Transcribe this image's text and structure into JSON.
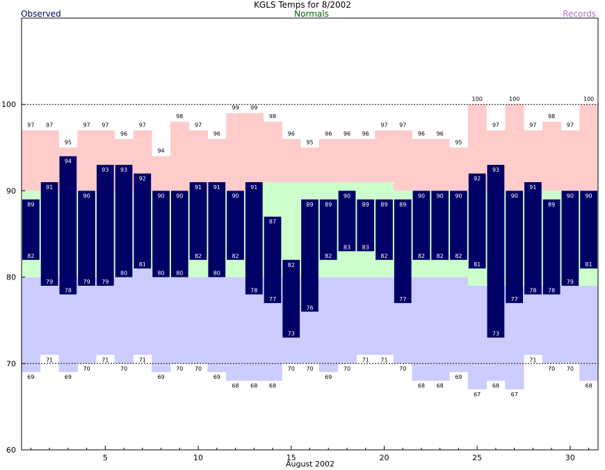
{
  "title": "KGLS Temps for 8/2002",
  "legend": {
    "observed": "Observed",
    "normals": "Normals",
    "records": "Records"
  },
  "colors": {
    "observed": "#000066",
    "normal_band": "#ccffcc",
    "record_high": "#ffcccc",
    "record_low": "#ccccff",
    "observed_label": "#000066",
    "normals_label": "#006600",
    "records_label": "#b070c0"
  },
  "chart_data": {
    "type": "bar",
    "title": "KGLS Temps for 8/2002",
    "xlabel": "August 2002",
    "ylabel": "",
    "ylim": [
      60,
      110
    ],
    "yticks": [
      60,
      70,
      80,
      90,
      100
    ],
    "xticks": [
      5,
      10,
      15,
      20,
      25,
      30
    ],
    "reference_lines": [
      70,
      100
    ],
    "grid": false,
    "legend_placement": "top",
    "days": [
      1,
      2,
      3,
      4,
      5,
      6,
      7,
      8,
      9,
      10,
      11,
      12,
      13,
      14,
      15,
      16,
      17,
      18,
      19,
      20,
      21,
      22,
      23,
      24,
      25,
      26,
      27,
      28,
      29,
      30,
      31
    ],
    "series": [
      {
        "name": "Observed high",
        "values": [
          89,
          91,
          94,
          90,
          93,
          93,
          92,
          90,
          90,
          91,
          91,
          90,
          91,
          87,
          82,
          89,
          89,
          90,
          89,
          89,
          89,
          90,
          90,
          90,
          92,
          93,
          90,
          91,
          89,
          90,
          90
        ]
      },
      {
        "name": "Observed low",
        "values": [
          82,
          79,
          78,
          79,
          79,
          80,
          81,
          80,
          80,
          82,
          80,
          82,
          78,
          77,
          73,
          76,
          82,
          83,
          83,
          82,
          77,
          82,
          82,
          82,
          81,
          73,
          77,
          78,
          78,
          79,
          81
        ]
      },
      {
        "name": "Record high",
        "values": [
          97,
          97,
          95,
          97,
          97,
          96,
          97,
          94,
          98,
          97,
          96,
          99,
          99,
          98,
          96,
          95,
          96,
          96,
          96,
          97,
          97,
          96,
          96,
          95,
          100,
          97,
          100,
          97,
          98,
          97,
          100
        ]
      },
      {
        "name": "Record low",
        "values": [
          69,
          71,
          69,
          70,
          71,
          70,
          71,
          69,
          70,
          70,
          69,
          68,
          68,
          68,
          70,
          70,
          69,
          70,
          71,
          71,
          70,
          68,
          68,
          69,
          67,
          68,
          67,
          71,
          70,
          70,
          68
        ]
      },
      {
        "name": "Normal high",
        "values": [
          90,
          90,
          90,
          90,
          90,
          90,
          90,
          90,
          90,
          90,
          90,
          90,
          90,
          91,
          91,
          91,
          91,
          91,
          91,
          91,
          90,
          90,
          90,
          90,
          90,
          90,
          90,
          90,
          90,
          90,
          90
        ]
      },
      {
        "name": "Normal low",
        "values": [
          80,
          80,
          80,
          80,
          80,
          80,
          81,
          80,
          80,
          80,
          80,
          80,
          80,
          80,
          80,
          80,
          80,
          80,
          80,
          80,
          80,
          80,
          80,
          80,
          79,
          79,
          79,
          79,
          79,
          79,
          79
        ]
      }
    ]
  }
}
